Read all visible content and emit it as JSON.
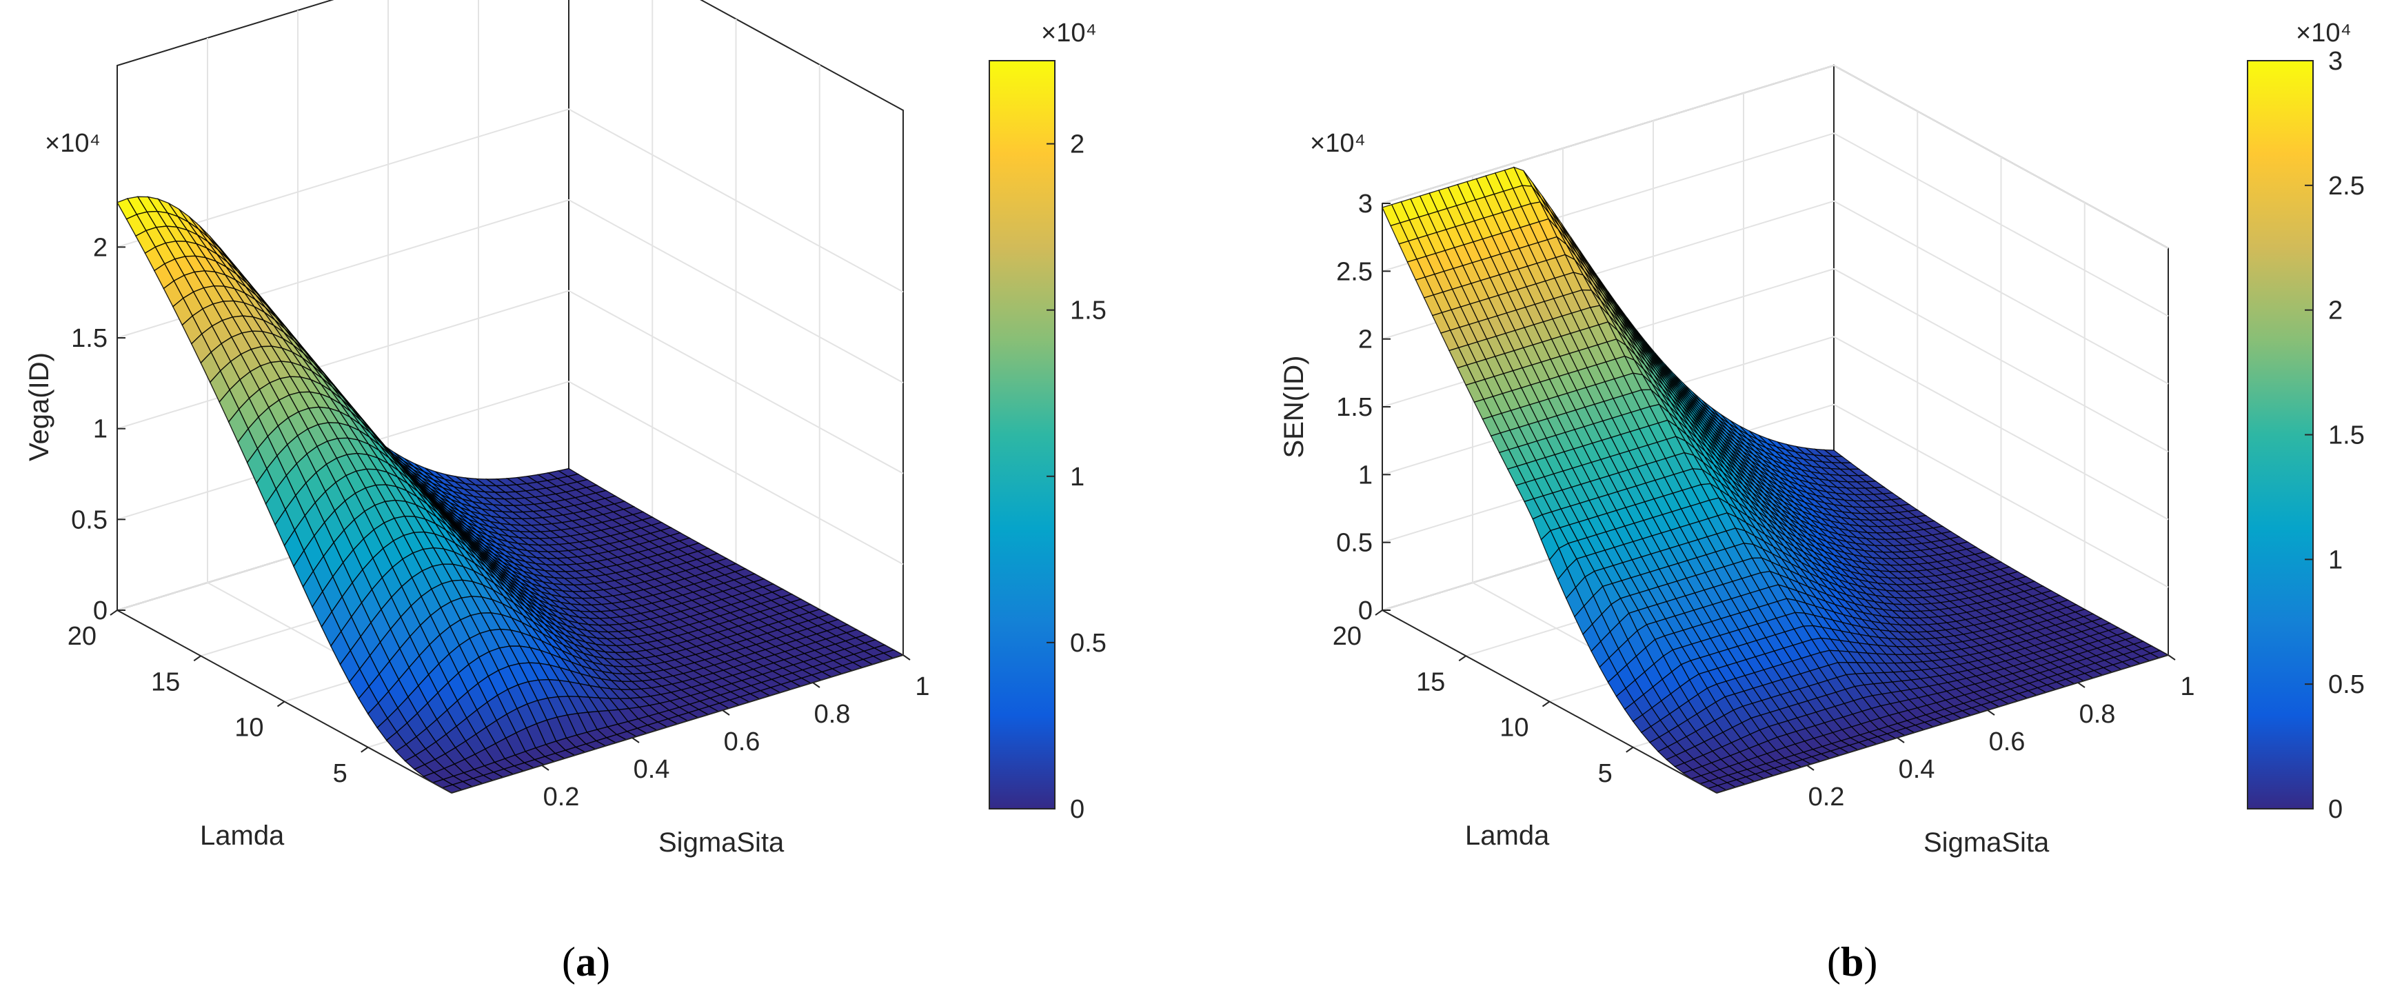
{
  "chart_data": [
    {
      "type": "surface3d",
      "panel_label": "a",
      "xlabel": "SigmaSita",
      "ylabel": "Lamda",
      "zlabel": "Vega(ID)",
      "x_ticks": [
        "0.2",
        "0.4",
        "0.6",
        "0.8",
        "1"
      ],
      "y_ticks": [
        "5",
        "10",
        "15",
        "20"
      ],
      "z_ticks": [
        "0",
        "0.5",
        "1",
        "1.5",
        "2"
      ],
      "z_multiplier": "×10⁴",
      "xlim": [
        0,
        1
      ],
      "ylim": [
        0,
        20
      ],
      "zlim": [
        0,
        30000
      ],
      "z_peak": 22500,
      "peak_at": {
        "SigmaSita": 0.05,
        "Lamda": 20
      },
      "colorbar": {
        "ticks": [
          "0",
          "0.5",
          "1",
          "1.5",
          "2"
        ],
        "multiplier": "×10⁴",
        "range": [
          0,
          22500
        ]
      },
      "colormap": [
        "#352a87",
        "#0f5cdd",
        "#1481d6",
        "#06a4ca",
        "#2eb7a4",
        "#87bf77",
        "#d1bb59",
        "#fec832",
        "#f9fb0e"
      ],
      "grid": true
    },
    {
      "type": "surface3d",
      "panel_label": "b",
      "xlabel": "SigmaSita",
      "ylabel": "Lamda",
      "zlabel": "SEN(ID)",
      "x_ticks": [
        "0.2",
        "0.4",
        "0.6",
        "0.8",
        "1"
      ],
      "y_ticks": [
        "5",
        "10",
        "15",
        "20"
      ],
      "z_ticks": [
        "0",
        "0.5",
        "1",
        "1.5",
        "2",
        "2.5",
        "3"
      ],
      "z_multiplier": "×10⁴",
      "xlim": [
        0,
        1
      ],
      "ylim": [
        0,
        20
      ],
      "zlim": [
        0,
        30000
      ],
      "z_peak": 30000,
      "peak_at": {
        "SigmaSita": 0.1,
        "Lamda": 20
      },
      "colorbar": {
        "ticks": [
          "0",
          "0.5",
          "1",
          "1.5",
          "2",
          "2.5",
          "3"
        ],
        "multiplier": "×10⁴",
        "range": [
          0,
          30000
        ]
      },
      "colormap": [
        "#352a87",
        "#0f5cdd",
        "#1481d6",
        "#06a4ca",
        "#2eb7a4",
        "#87bf77",
        "#d1bb59",
        "#fec832",
        "#f9fb0e"
      ],
      "grid": true
    }
  ]
}
